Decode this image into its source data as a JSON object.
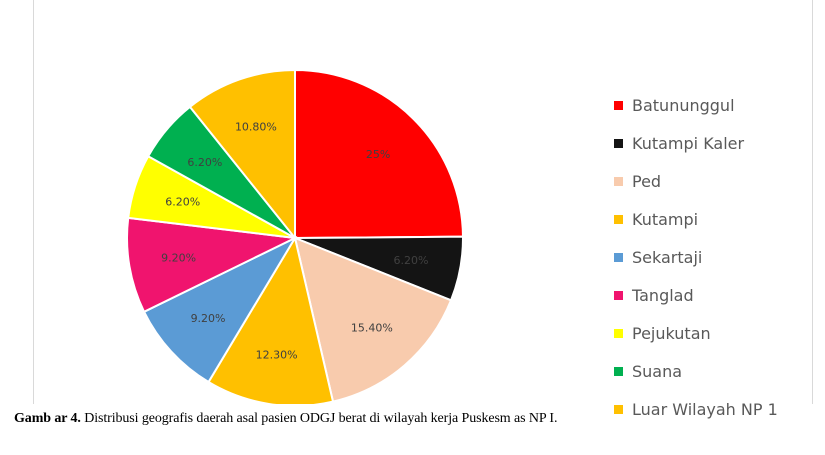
{
  "caption": {
    "label": "Gamb ar 4.",
    "text": " Distribusi geografis daerah asal pasien ODGJ berat di wilayah kerja Puskesm as NP I."
  },
  "chart_data": {
    "type": "pie",
    "slices": [
      {
        "name": "Batununggul",
        "value": 25,
        "label": "25%",
        "color": "#ff0000"
      },
      {
        "name": "Kutampi Kaler",
        "value": 6.2,
        "label": "6.20%",
        "color": "#141414"
      },
      {
        "name": "Ped",
        "value": 15.4,
        "label": "15.40%",
        "color": "#f8cbad"
      },
      {
        "name": "Kutampi",
        "value": 12.3,
        "label": "12.30%",
        "color": "#ffc000"
      },
      {
        "name": "Sekartaji",
        "value": 9.2,
        "label": "9.20%",
        "color": "#5b9bd5"
      },
      {
        "name": "Tanglad",
        "value": 9.2,
        "label": "9.20%",
        "color": "#f0146e"
      },
      {
        "name": "Pejukutan",
        "value": 6.2,
        "label": "6.20%",
        "color": "#ffff00"
      },
      {
        "name": "Suana",
        "value": 6.2,
        "label": "6.20%",
        "color": "#00b050"
      },
      {
        "name": "Luar Wilayah NP 1",
        "value": 10.8,
        "label": "10.80%",
        "color": "#ffc000"
      }
    ],
    "start_angle_deg": 0,
    "direction": "clockwise",
    "legend_position": "right"
  }
}
